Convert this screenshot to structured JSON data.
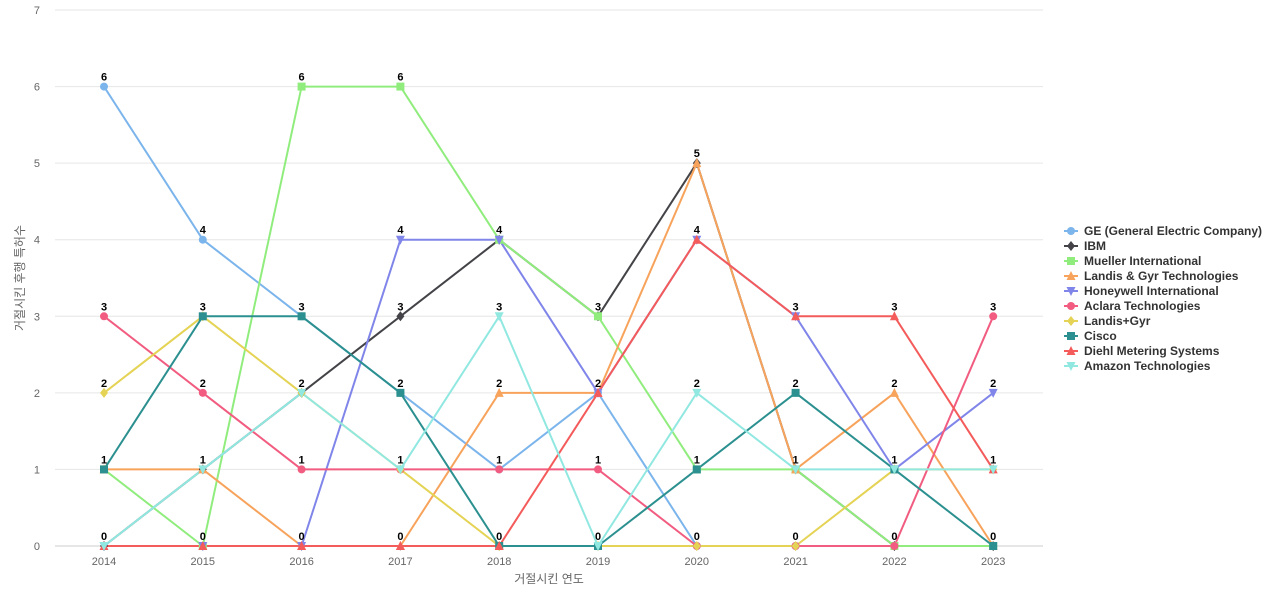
{
  "chart_data": {
    "type": "line",
    "title": "",
    "xlabel": "거절시킨 연도",
    "ylabel": "거절시킨 후행 특허수",
    "x": [
      "2014",
      "2015",
      "2016",
      "2017",
      "2018",
      "2019",
      "2020",
      "2021",
      "2022",
      "2023"
    ],
    "ylim": [
      0,
      7
    ],
    "yticks": [
      0,
      1,
      2,
      3,
      4,
      5,
      6,
      7
    ],
    "grid": true,
    "legend_position": "right",
    "series": [
      {
        "name": "GE (General Electric Company)",
        "color": "#7cb5ec",
        "marker": "circle",
        "values": [
          6,
          4,
          3,
          2,
          1,
          2,
          0,
          0,
          0,
          0
        ]
      },
      {
        "name": "IBM",
        "color": "#434348",
        "marker": "diamond",
        "values": [
          0,
          1,
          2,
          3,
          4,
          3,
          5,
          1,
          0,
          0
        ]
      },
      {
        "name": "Mueller International",
        "color": "#90ed7d",
        "marker": "square",
        "values": [
          1,
          0,
          6,
          6,
          4,
          3,
          1,
          1,
          0,
          0
        ]
      },
      {
        "name": "Landis & Gyr Technologies",
        "color": "#f7a35c",
        "marker": "triangle",
        "values": [
          1,
          1,
          0,
          0,
          2,
          2,
          5,
          1,
          2,
          0
        ]
      },
      {
        "name": "Honeywell International",
        "color": "#8085e9",
        "marker": "triangle-down",
        "values": [
          0,
          0,
          0,
          4,
          4,
          2,
          4,
          3,
          1,
          2
        ]
      },
      {
        "name": "Aclara Technologies",
        "color": "#f15c80",
        "marker": "circle",
        "values": [
          3,
          2,
          1,
          1,
          1,
          1,
          0,
          0,
          0,
          3
        ]
      },
      {
        "name": "Landis+Gyr",
        "color": "#e4d354",
        "marker": "diamond",
        "values": [
          2,
          3,
          2,
          1,
          0,
          0,
          0,
          0,
          1,
          1
        ]
      },
      {
        "name": "Cisco",
        "color": "#2b908f",
        "marker": "square",
        "values": [
          1,
          3,
          3,
          2,
          0,
          0,
          1,
          2,
          1,
          0
        ]
      },
      {
        "name": "Diehl Metering Systems",
        "color": "#f45b5b",
        "marker": "triangle",
        "values": [
          0,
          0,
          0,
          0,
          0,
          2,
          4,
          3,
          3,
          1
        ]
      },
      {
        "name": "Amazon Technologies",
        "color": "#91e8e1",
        "marker": "triangle-down",
        "values": [
          0,
          1,
          2,
          1,
          3,
          0,
          2,
          1,
          1,
          1
        ]
      }
    ],
    "data_labels": [
      {
        "x": "2014",
        "value": 6,
        "series": "GE (General Electric Company)"
      },
      {
        "x": "2014",
        "value": 3,
        "series": "Aclara Technologies"
      },
      {
        "x": "2014",
        "value": 2,
        "series": "Landis+Gyr"
      },
      {
        "x": "2014",
        "value": 1,
        "series": "Cisco"
      },
      {
        "x": "2014",
        "value": 0,
        "series": "Diehl Metering Systems"
      },
      {
        "x": "2015",
        "value": 4,
        "series": "GE (General Electric Company)"
      },
      {
        "x": "2015",
        "value": 3,
        "series": "Cisco"
      },
      {
        "x": "2015",
        "value": 2,
        "series": "Aclara Technologies"
      },
      {
        "x": "2015",
        "value": 1,
        "series": "Amazon Technologies"
      },
      {
        "x": "2015",
        "value": 0,
        "series": "Diehl Metering Systems"
      },
      {
        "x": "2016",
        "value": 6,
        "series": "Mueller International"
      },
      {
        "x": "2016",
        "value": 3,
        "series": "Cisco"
      },
      {
        "x": "2016",
        "value": 2,
        "series": "Amazon Technologies"
      },
      {
        "x": "2016",
        "value": 1,
        "series": "Aclara Technologies"
      },
      {
        "x": "2016",
        "value": 0,
        "series": "Diehl Metering Systems"
      },
      {
        "x": "2017",
        "value": 6,
        "series": "Mueller International"
      },
      {
        "x": "2017",
        "value": 4,
        "series": "Honeywell International"
      },
      {
        "x": "2017",
        "value": 3,
        "series": "IBM"
      },
      {
        "x": "2017",
        "value": 2,
        "series": "Cisco"
      },
      {
        "x": "2017",
        "value": 1,
        "series": "Amazon Technologies"
      },
      {
        "x": "2017",
        "value": 0,
        "series": "Diehl Metering Systems"
      },
      {
        "x": "2018",
        "value": 4,
        "series": "Honeywell International"
      },
      {
        "x": "2018",
        "value": 3,
        "series": "Amazon Technologies"
      },
      {
        "x": "2018",
        "value": 2,
        "series": "Landis & Gyr Technologies"
      },
      {
        "x": "2018",
        "value": 1,
        "series": "GE (General Electric Company)"
      },
      {
        "x": "2018",
        "value": 0,
        "series": "Diehl Metering Systems"
      },
      {
        "x": "2019",
        "value": 3,
        "series": "Mueller International"
      },
      {
        "x": "2019",
        "value": 2,
        "series": "Diehl Metering Systems"
      },
      {
        "x": "2019",
        "value": 1,
        "series": "Aclara Technologies"
      },
      {
        "x": "2019",
        "value": 0,
        "series": "Amazon Technologies"
      },
      {
        "x": "2020",
        "value": 5,
        "series": "IBM"
      },
      {
        "x": "2020",
        "value": 4,
        "series": "Diehl Metering Systems"
      },
      {
        "x": "2020",
        "value": 2,
        "series": "Amazon Technologies"
      },
      {
        "x": "2020",
        "value": 1,
        "series": "Cisco"
      },
      {
        "x": "2020",
        "value": 0,
        "series": "GE (General Electric Company)"
      },
      {
        "x": "2021",
        "value": 3,
        "series": "Diehl Metering Systems"
      },
      {
        "x": "2021",
        "value": 2,
        "series": "Cisco"
      },
      {
        "x": "2021",
        "value": 1,
        "series": "Amazon Technologies"
      },
      {
        "x": "2021",
        "value": 0,
        "series": "Landis+Gyr"
      },
      {
        "x": "2022",
        "value": 3,
        "series": "Diehl Metering Systems"
      },
      {
        "x": "2022",
        "value": 2,
        "series": "Landis & Gyr Technologies"
      },
      {
        "x": "2022",
        "value": 1,
        "series": "Amazon Technologies"
      },
      {
        "x": "2022",
        "value": 0,
        "series": "Mueller International"
      },
      {
        "x": "2023",
        "value": 3,
        "series": "Aclara Technologies"
      },
      {
        "x": "2023",
        "value": 2,
        "series": "Honeywell International"
      },
      {
        "x": "2023",
        "value": 1,
        "series": "Amazon Technologies"
      },
      {
        "x": "2023",
        "value": 0,
        "series": "Cisco"
      }
    ]
  }
}
